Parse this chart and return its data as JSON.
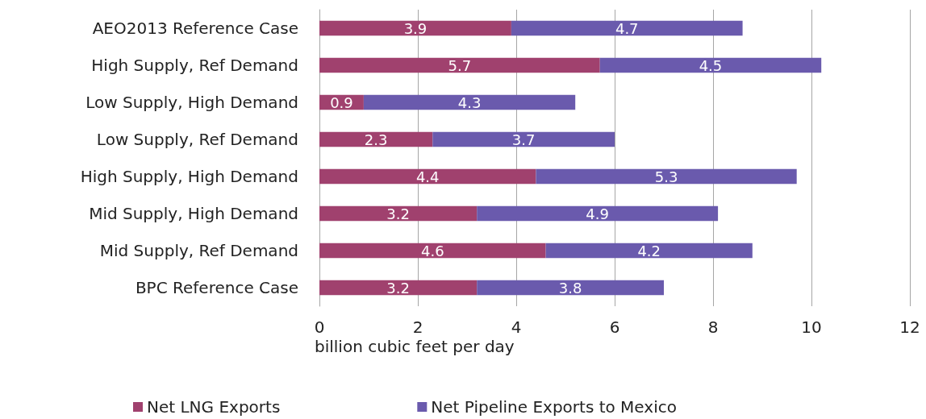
{
  "chart_data": {
    "type": "bar",
    "orientation": "horizontal",
    "stacked": true,
    "xlabel": "billion cubic feet per day",
    "categories": [
      "AEO2013 Reference Case",
      "High Supply, Ref Demand",
      "Low Supply, High Demand",
      "Low Supply, Ref Demand",
      "High Supply, High Demand",
      "Mid Supply, High Demand",
      "Mid Supply, Ref Demand",
      "BPC Reference Case"
    ],
    "series": [
      {
        "name": "Net LNG Exports",
        "color": "#a0416e",
        "values": [
          3.9,
          5.7,
          0.9,
          2.3,
          4.4,
          3.2,
          4.6,
          3.2
        ]
      },
      {
        "name": "Net Pipeline Exports to Mexico",
        "color": "#6a5aad",
        "values": [
          4.7,
          4.5,
          4.3,
          3.7,
          5.3,
          4.9,
          4.2,
          3.8
        ]
      }
    ],
    "xlim": [
      0,
      12
    ],
    "xticks": [
      0,
      2,
      4,
      6,
      8,
      10,
      12
    ],
    "grid": "x",
    "legend": "bottom",
    "data_labels": true
  }
}
